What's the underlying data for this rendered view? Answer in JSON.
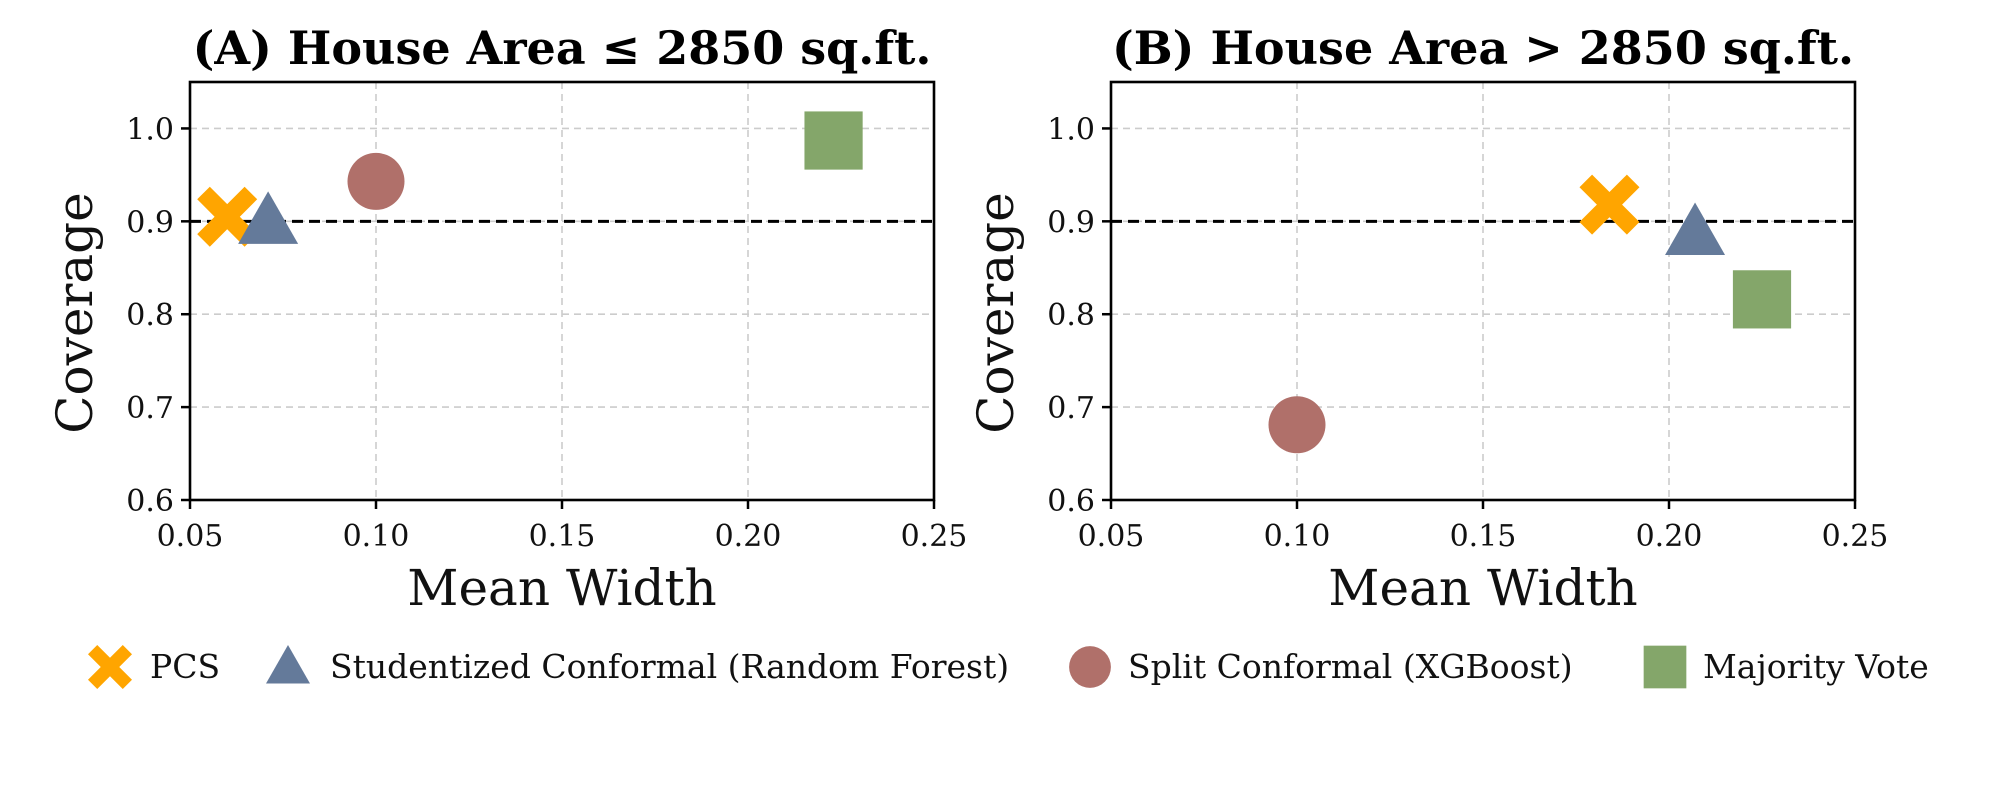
{
  "chart_data": [
    {
      "type": "scatter",
      "title": "(A) House Area ≤ 2850 sq.ft.",
      "xlabel": "Mean Width",
      "ylabel": "Coverage",
      "xlim": [
        0.05,
        0.25
      ],
      "ylim": [
        0.6,
        1.05
      ],
      "xticks": [
        "0.05",
        "0.10",
        "0.15",
        "0.20",
        "0.25"
      ],
      "yticks": [
        "0.6",
        "0.7",
        "0.8",
        "0.9",
        "1.0"
      ],
      "reference_line": 0.9,
      "grid": true,
      "points": [
        {
          "series": "PCS",
          "x": 0.06,
          "y": 0.905
        },
        {
          "series": "Studentized Conformal (Random Forest)",
          "x": 0.071,
          "y": 0.9
        },
        {
          "series": "Split Conformal (XGBoost)",
          "x": 0.1,
          "y": 0.943
        },
        {
          "series": "Majority Vote",
          "x": 0.223,
          "y": 0.987
        }
      ]
    },
    {
      "type": "scatter",
      "title": "(B) House Area > 2850 sq.ft.",
      "xlabel": "Mean Width",
      "ylabel": "Coverage",
      "xlim": [
        0.05,
        0.25
      ],
      "ylim": [
        0.6,
        1.05
      ],
      "xticks": [
        "0.05",
        "0.10",
        "0.15",
        "0.20",
        "0.25"
      ],
      "yticks": [
        "0.6",
        "0.7",
        "0.8",
        "0.9",
        "1.0"
      ],
      "reference_line": 0.9,
      "grid": true,
      "points": [
        {
          "series": "PCS",
          "x": 0.184,
          "y": 0.918
        },
        {
          "series": "Studentized Conformal (Random Forest)",
          "x": 0.207,
          "y": 0.888
        },
        {
          "series": "Split Conformal (XGBoost)",
          "x": 0.1,
          "y": 0.681
        },
        {
          "series": "Majority Vote",
          "x": 0.225,
          "y": 0.816
        }
      ]
    }
  ],
  "legend": {
    "placement": "bottom",
    "items": [
      {
        "label": "PCS",
        "marker": "x-marker",
        "color": "#FFA500"
      },
      {
        "label": "Studentized Conformal (Random Forest)",
        "marker": "triangle-marker",
        "color": "#647A9A"
      },
      {
        "label": "Split Conformal (XGBoost)",
        "marker": "circle-marker",
        "color": "#B0706A"
      },
      {
        "label": "Majority Vote",
        "marker": "square-marker",
        "color": "#84A66A"
      }
    ]
  },
  "colors": {
    "PCS": "#FFA500",
    "Studentized Conformal (Random Forest)": "#647A9A",
    "Split Conformal (XGBoost)": "#B0706A",
    "Majority Vote": "#84A66A",
    "grid": "#CCCCCC",
    "reference": "#000000"
  }
}
